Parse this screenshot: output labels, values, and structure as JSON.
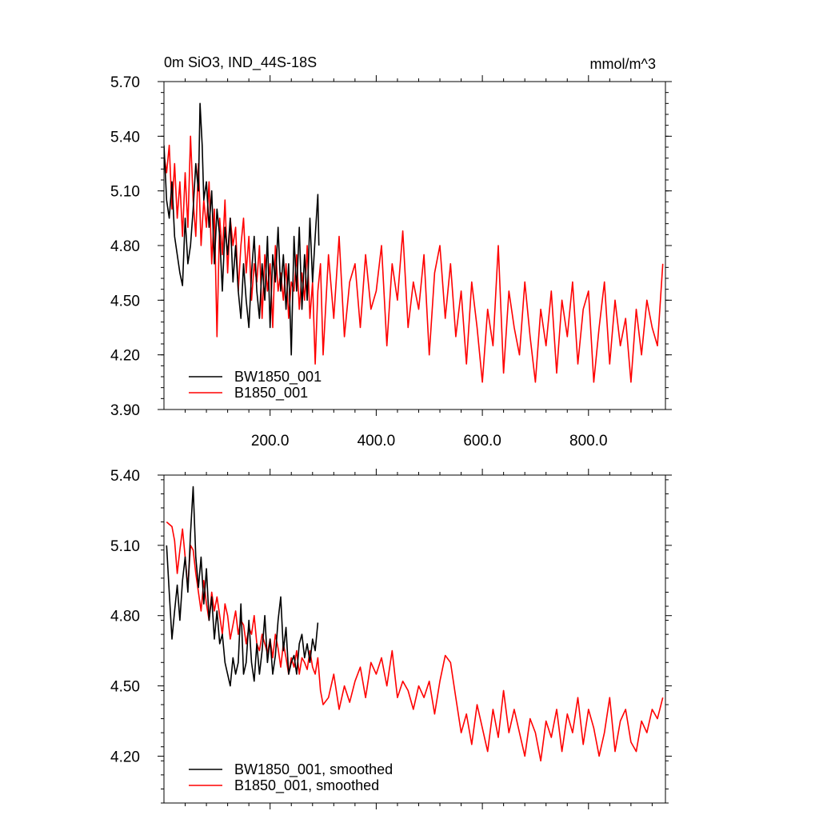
{
  "chart_data": [
    {
      "type": "line",
      "title": "0m SiO3, IND_44S-18S",
      "units": "mmol/m^3",
      "xlabel": "",
      "ylabel": "",
      "xlim": [
        0,
        945
      ],
      "ylim": [
        3.9,
        5.7
      ],
      "xticks": [
        200,
        400,
        600,
        800
      ],
      "xtick_labels": [
        "200.0",
        "400.0",
        "600.0",
        "800.0"
      ],
      "yticks": [
        3.9,
        4.2,
        4.5,
        4.8,
        5.1,
        5.4,
        5.7
      ],
      "ytick_labels": [
        "3.90",
        "4.20",
        "4.50",
        "4.80",
        "5.10",
        "5.40",
        "5.70"
      ],
      "grid": false,
      "legend": "bottom-left",
      "series": [
        {
          "name": "BW1850_001",
          "color": "#000000",
          "x": [
            0,
            5,
            10,
            15,
            20,
            25,
            30,
            35,
            40,
            45,
            50,
            55,
            60,
            65,
            68,
            72,
            75,
            80,
            85,
            90,
            95,
            100,
            105,
            110,
            115,
            120,
            125,
            130,
            135,
            140,
            145,
            150,
            155,
            160,
            165,
            170,
            175,
            180,
            185,
            190,
            195,
            200,
            205,
            210,
            215,
            220,
            225,
            230,
            235,
            240,
            245,
            250,
            255,
            260,
            265,
            270,
            275,
            280,
            285,
            290,
            292
          ],
          "values": [
            5.35,
            5.05,
            4.95,
            5.15,
            4.85,
            4.75,
            4.65,
            4.58,
            4.95,
            4.7,
            4.8,
            5.0,
            5.25,
            5.1,
            5.58,
            5.35,
            5.05,
            5.15,
            4.9,
            5.1,
            4.7,
            5.0,
            4.85,
            4.55,
            4.9,
            4.75,
            4.95,
            4.6,
            4.8,
            4.55,
            4.4,
            4.7,
            4.5,
            4.35,
            4.65,
            4.85,
            4.55,
            4.4,
            4.7,
            4.5,
            4.85,
            4.35,
            4.75,
            4.6,
            4.9,
            4.55,
            4.75,
            4.45,
            4.7,
            4.2,
            4.85,
            4.55,
            4.9,
            4.45,
            4.75,
            4.5,
            4.95,
            4.6,
            4.85,
            5.08,
            4.8
          ]
        },
        {
          "name": "B1850_001",
          "color": "#ff0000",
          "x": [
            0,
            5,
            10,
            15,
            20,
            25,
            30,
            35,
            40,
            45,
            50,
            55,
            60,
            65,
            70,
            75,
            80,
            85,
            90,
            95,
            100,
            105,
            110,
            115,
            120,
            125,
            130,
            135,
            140,
            145,
            150,
            155,
            160,
            165,
            170,
            175,
            180,
            185,
            190,
            195,
            200,
            205,
            210,
            215,
            220,
            225,
            230,
            235,
            240,
            245,
            250,
            255,
            260,
            265,
            270,
            275,
            280,
            285,
            290,
            295,
            300,
            310,
            320,
            330,
            340,
            350,
            360,
            370,
            380,
            390,
            400,
            410,
            420,
            430,
            440,
            450,
            460,
            470,
            480,
            490,
            500,
            510,
            520,
            530,
            540,
            550,
            560,
            570,
            580,
            590,
            600,
            610,
            620,
            630,
            640,
            650,
            660,
            670,
            680,
            690,
            700,
            710,
            720,
            730,
            740,
            750,
            760,
            770,
            780,
            790,
            800,
            810,
            820,
            830,
            840,
            850,
            860,
            870,
            880,
            890,
            900,
            910,
            920,
            930,
            940
          ],
          "values": [
            5.3,
            5.2,
            5.35,
            5.0,
            5.25,
            4.95,
            5.15,
            4.85,
            5.2,
            4.9,
            5.4,
            5.05,
            4.85,
            5.25,
            4.8,
            5.05,
            4.9,
            5.15,
            4.7,
            5.0,
            4.3,
            4.95,
            4.75,
            5.05,
            4.65,
            4.95,
            4.8,
            4.9,
            4.55,
            4.8,
            4.95,
            4.65,
            4.85,
            4.5,
            4.7,
            4.6,
            4.8,
            4.4,
            4.75,
            4.55,
            4.7,
            4.35,
            4.8,
            4.55,
            4.65,
            4.5,
            4.7,
            4.4,
            4.6,
            4.55,
            4.75,
            4.45,
            4.65,
            4.5,
            4.8,
            4.4,
            4.6,
            4.15,
            4.55,
            4.7,
            4.2,
            4.75,
            4.4,
            4.85,
            4.3,
            4.6,
            4.7,
            4.35,
            4.75,
            4.45,
            4.55,
            4.8,
            4.25,
            4.7,
            4.5,
            4.88,
            4.35,
            4.6,
            4.45,
            4.75,
            4.2,
            4.65,
            4.8,
            4.4,
            4.7,
            4.3,
            4.55,
            4.15,
            4.6,
            4.35,
            4.05,
            4.45,
            4.25,
            4.8,
            4.1,
            4.55,
            4.35,
            4.2,
            4.6,
            4.3,
            4.05,
            4.45,
            4.25,
            4.55,
            4.1,
            4.5,
            4.3,
            4.6,
            4.15,
            4.45,
            4.55,
            4.05,
            4.35,
            4.6,
            4.15,
            4.5,
            4.25,
            4.4,
            4.05,
            4.45,
            4.2,
            4.5,
            4.35,
            4.25,
            4.7
          ]
        }
      ]
    },
    {
      "type": "line",
      "title": "",
      "xlabel": "",
      "ylabel": "",
      "xlim": [
        0,
        945
      ],
      "ylim": [
        4.0,
        5.4
      ],
      "xticks": [
        200,
        400,
        600,
        800
      ],
      "xtick_labels": [],
      "yticks": [
        4.2,
        4.5,
        4.8,
        5.1,
        5.4
      ],
      "ytick_labels": [
        "4.20",
        "4.50",
        "4.80",
        "5.10",
        "5.40"
      ],
      "grid": false,
      "legend": "bottom-left",
      "series": [
        {
          "name": "BW1850_001, smoothed",
          "color": "#000000",
          "x": [
            5,
            10,
            15,
            20,
            25,
            30,
            35,
            40,
            45,
            50,
            55,
            60,
            65,
            70,
            75,
            80,
            85,
            90,
            95,
            100,
            105,
            110,
            115,
            120,
            125,
            130,
            135,
            140,
            145,
            150,
            155,
            160,
            165,
            170,
            175,
            180,
            185,
            190,
            195,
            200,
            205,
            210,
            215,
            220,
            225,
            230,
            235,
            240,
            245,
            250,
            255,
            260,
            265,
            270,
            275,
            280,
            285,
            290
          ],
          "values": [
            5.1,
            4.9,
            4.7,
            4.82,
            4.93,
            4.78,
            4.95,
            5.05,
            4.9,
            5.15,
            5.35,
            5.05,
            4.92,
            5.05,
            4.85,
            5.0,
            4.78,
            4.88,
            4.7,
            4.82,
            4.68,
            4.72,
            4.6,
            4.55,
            4.5,
            4.62,
            4.55,
            4.6,
            4.85,
            4.55,
            4.6,
            4.78,
            4.6,
            4.52,
            4.68,
            4.55,
            4.65,
            4.8,
            4.6,
            4.7,
            4.55,
            4.63,
            4.78,
            4.88,
            4.65,
            4.75,
            4.55,
            4.6,
            4.63,
            4.55,
            4.68,
            4.72,
            4.62,
            4.68,
            4.6,
            4.7,
            4.65,
            4.77
          ]
        },
        {
          "name": "B1850_001, smoothed",
          "color": "#ff0000",
          "x": [
            5,
            10,
            15,
            20,
            25,
            30,
            35,
            40,
            45,
            50,
            55,
            60,
            65,
            70,
            75,
            80,
            85,
            90,
            95,
            100,
            105,
            110,
            115,
            120,
            125,
            130,
            135,
            140,
            145,
            150,
            155,
            160,
            165,
            170,
            175,
            180,
            185,
            190,
            195,
            200,
            205,
            210,
            215,
            220,
            225,
            230,
            235,
            240,
            245,
            250,
            255,
            260,
            265,
            270,
            275,
            280,
            285,
            290,
            295,
            300,
            310,
            320,
            330,
            340,
            350,
            360,
            370,
            380,
            390,
            400,
            410,
            420,
            430,
            440,
            450,
            460,
            470,
            480,
            490,
            500,
            510,
            520,
            530,
            540,
            550,
            560,
            570,
            580,
            590,
            600,
            610,
            620,
            630,
            640,
            650,
            660,
            670,
            680,
            690,
            700,
            710,
            720,
            730,
            740,
            750,
            760,
            770,
            780,
            790,
            800,
            810,
            820,
            830,
            840,
            850,
            860,
            870,
            880,
            890,
            900,
            910,
            920,
            930,
            940
          ],
          "values": [
            5.2,
            5.19,
            5.18,
            5.12,
            4.98,
            5.08,
            5.17,
            5.05,
            4.92,
            5.1,
            5.08,
            4.98,
            4.9,
            4.82,
            4.95,
            4.85,
            4.78,
            4.9,
            4.82,
            4.88,
            4.8,
            4.72,
            4.85,
            4.8,
            4.7,
            4.76,
            4.82,
            4.72,
            4.78,
            4.76,
            4.68,
            4.75,
            4.72,
            4.8,
            4.68,
            4.65,
            4.72,
            4.68,
            4.64,
            4.7,
            4.62,
            4.72,
            4.66,
            4.58,
            4.68,
            4.62,
            4.55,
            4.62,
            4.58,
            4.65,
            4.55,
            4.62,
            4.6,
            4.57,
            4.65,
            4.58,
            4.55,
            4.62,
            4.48,
            4.42,
            4.45,
            4.55,
            4.4,
            4.5,
            4.43,
            4.52,
            4.58,
            4.45,
            4.6,
            4.55,
            4.62,
            4.5,
            4.65,
            4.45,
            4.52,
            4.48,
            4.4,
            4.5,
            4.45,
            4.52,
            4.38,
            4.52,
            4.63,
            4.6,
            4.45,
            4.3,
            4.38,
            4.25,
            4.42,
            4.32,
            4.22,
            4.4,
            4.28,
            4.48,
            4.3,
            4.4,
            4.3,
            4.2,
            4.36,
            4.3,
            4.18,
            4.35,
            4.28,
            4.4,
            4.22,
            4.38,
            4.3,
            4.45,
            4.25,
            4.4,
            4.32,
            4.2,
            4.3,
            4.45,
            4.22,
            4.35,
            4.4,
            4.26,
            4.22,
            4.35,
            4.3,
            4.4,
            4.36,
            4.45
          ]
        }
      ]
    }
  ]
}
